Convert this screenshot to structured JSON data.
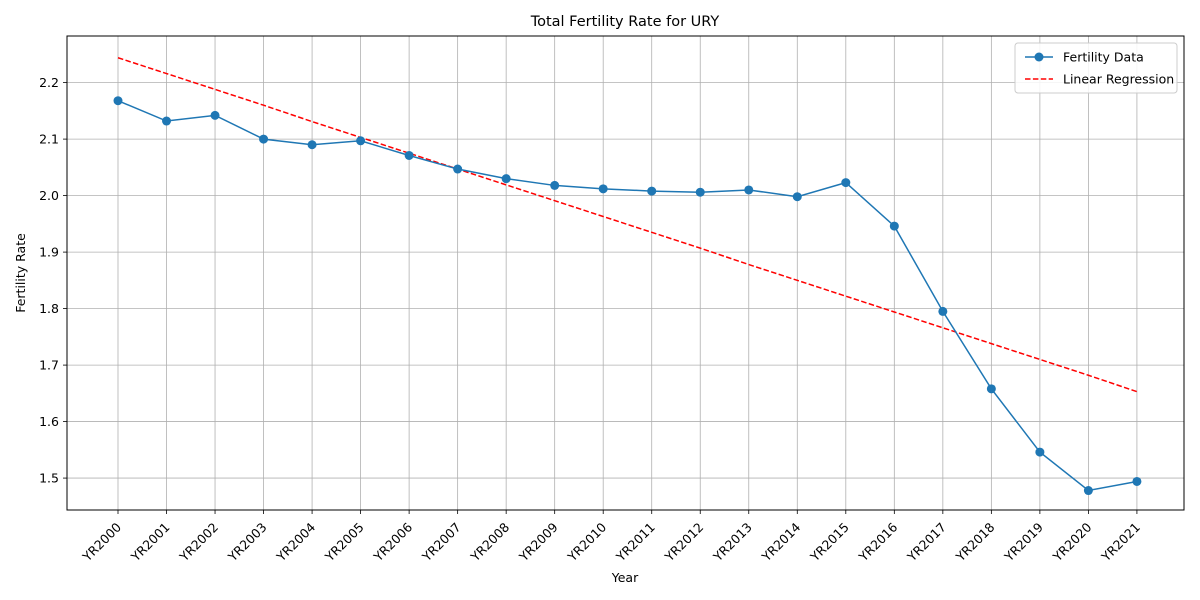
{
  "chart_data": {
    "type": "line",
    "title": "Total Fertility Rate for URY",
    "xlabel": "Year",
    "ylabel": "Fertility Rate",
    "categories": [
      "YR2000",
      "YR2001",
      "YR2002",
      "YR2003",
      "YR2004",
      "YR2005",
      "YR2006",
      "YR2007",
      "YR2008",
      "YR2009",
      "YR2010",
      "YR2011",
      "YR2012",
      "YR2013",
      "YR2014",
      "YR2015",
      "YR2016",
      "YR2017",
      "YR2018",
      "YR2019",
      "YR2020",
      "YR2021"
    ],
    "series": [
      {
        "name": "Fertility Data",
        "style": "solid-with-markers",
        "color": "#1f77b4",
        "values": [
          2.168,
          2.132,
          2.142,
          2.1,
          2.09,
          2.097,
          2.071,
          2.047,
          2.03,
          2.018,
          2.012,
          2.008,
          2.006,
          2.01,
          1.998,
          2.023,
          1.946,
          1.795,
          1.658,
          1.546,
          1.478,
          1.494
        ]
      },
      {
        "name": "Linear Regression",
        "style": "dashed",
        "color": "#ff0000",
        "values": [
          2.244,
          2.216,
          2.188,
          2.16,
          2.131,
          2.103,
          2.075,
          2.047,
          2.019,
          1.991,
          1.963,
          1.935,
          1.907,
          1.878,
          1.85,
          1.822,
          1.794,
          1.766,
          1.738,
          1.71,
          1.682,
          1.653
        ]
      }
    ],
    "yticks": [
      1.5,
      1.6,
      1.7,
      1.8,
      1.9,
      2.0,
      2.1,
      2.2
    ],
    "ytick_labels": [
      "1.5",
      "1.6",
      "1.7",
      "1.8",
      "1.9",
      "2.0",
      "2.1",
      "2.2"
    ],
    "ylim": [
      1.4435,
      2.2825
    ],
    "grid": true,
    "legend_position": "top-right",
    "xtick_rotation_deg": 45
  }
}
